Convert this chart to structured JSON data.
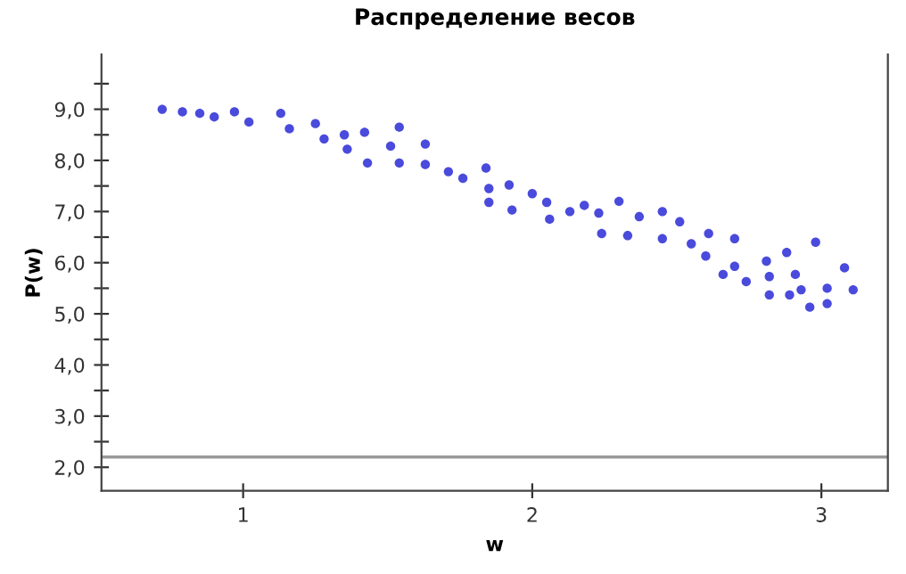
{
  "chart_data": {
    "type": "scatter",
    "title": "Распределение весов",
    "xlabel": "w",
    "ylabel": "P(w)",
    "x": [
      0.72,
      0.79,
      0.85,
      0.9,
      0.97,
      1.02,
      1.13,
      1.16,
      1.25,
      1.28,
      1.35,
      1.36,
      1.42,
      1.43,
      1.51,
      1.54,
      1.54,
      1.63,
      1.63,
      1.71,
      1.76,
      1.84,
      1.85,
      1.85,
      1.92,
      1.93,
      2.0,
      2.05,
      2.06,
      2.13,
      2.18,
      2.23,
      2.24,
      2.3,
      2.33,
      2.37,
      2.45,
      2.45,
      2.51,
      2.55,
      2.61,
      2.6,
      2.7,
      2.7,
      2.66,
      2.74,
      2.81,
      2.82,
      2.82,
      2.88,
      2.91,
      2.89,
      2.93,
      2.98,
      2.96,
      3.02,
      3.02,
      3.08,
      3.11
    ],
    "series": [
      {
        "color": "#2a2ad6",
        "values": [
          9.0,
          8.95,
          8.92,
          8.85,
          8.95,
          8.75,
          8.92,
          8.62,
          8.72,
          8.42,
          8.5,
          8.22,
          8.55,
          7.95,
          8.28,
          8.65,
          7.95,
          8.32,
          7.92,
          7.78,
          7.65,
          7.85,
          7.45,
          7.18,
          7.52,
          7.03,
          7.35,
          7.18,
          6.85,
          7.0,
          7.12,
          6.97,
          6.57,
          7.2,
          6.53,
          6.9,
          7.0,
          6.47,
          6.8,
          6.37,
          6.57,
          6.13,
          6.47,
          5.93,
          5.77,
          5.63,
          6.03,
          5.73,
          5.37,
          6.2,
          5.77,
          5.37,
          5.47,
          6.4,
          5.13,
          5.5,
          5.2,
          5.9,
          5.47
        ]
      }
    ],
    "marker": "circle",
    "grid": false,
    "legend": false,
    "xlim": [
      0.51,
      3.23
    ],
    "xticks": [
      1,
      2,
      3
    ],
    "ylim": [
      1.54,
      10.07
    ],
    "yticks": [
      {
        "value": 2,
        "label": "2,0"
      },
      {
        "value": 2.5,
        "label": null
      },
      {
        "value": 3,
        "label": "3,0"
      },
      {
        "value": 3.5,
        "label": null
      },
      {
        "value": 4,
        "label": "4,0"
      },
      {
        "value": 4.5,
        "label": null
      },
      {
        "value": 5,
        "label": "5,0"
      },
      {
        "value": 5.5,
        "label": null
      },
      {
        "value": 6,
        "label": "6,0"
      },
      {
        "value": 6.5,
        "label": null
      },
      {
        "value": 7,
        "label": "7,0"
      },
      {
        "value": 7.5,
        "label": null
      },
      {
        "value": 8,
        "label": "8,0"
      },
      {
        "value": 8.5,
        "label": null
      },
      {
        "value": 9,
        "label": "9,0"
      },
      {
        "value": 9.5,
        "label": null
      }
    ],
    "ref_lines": [
      {
        "axis": "y",
        "value": 2.2,
        "color": "#999999",
        "line_style": "solid"
      }
    ]
  }
}
